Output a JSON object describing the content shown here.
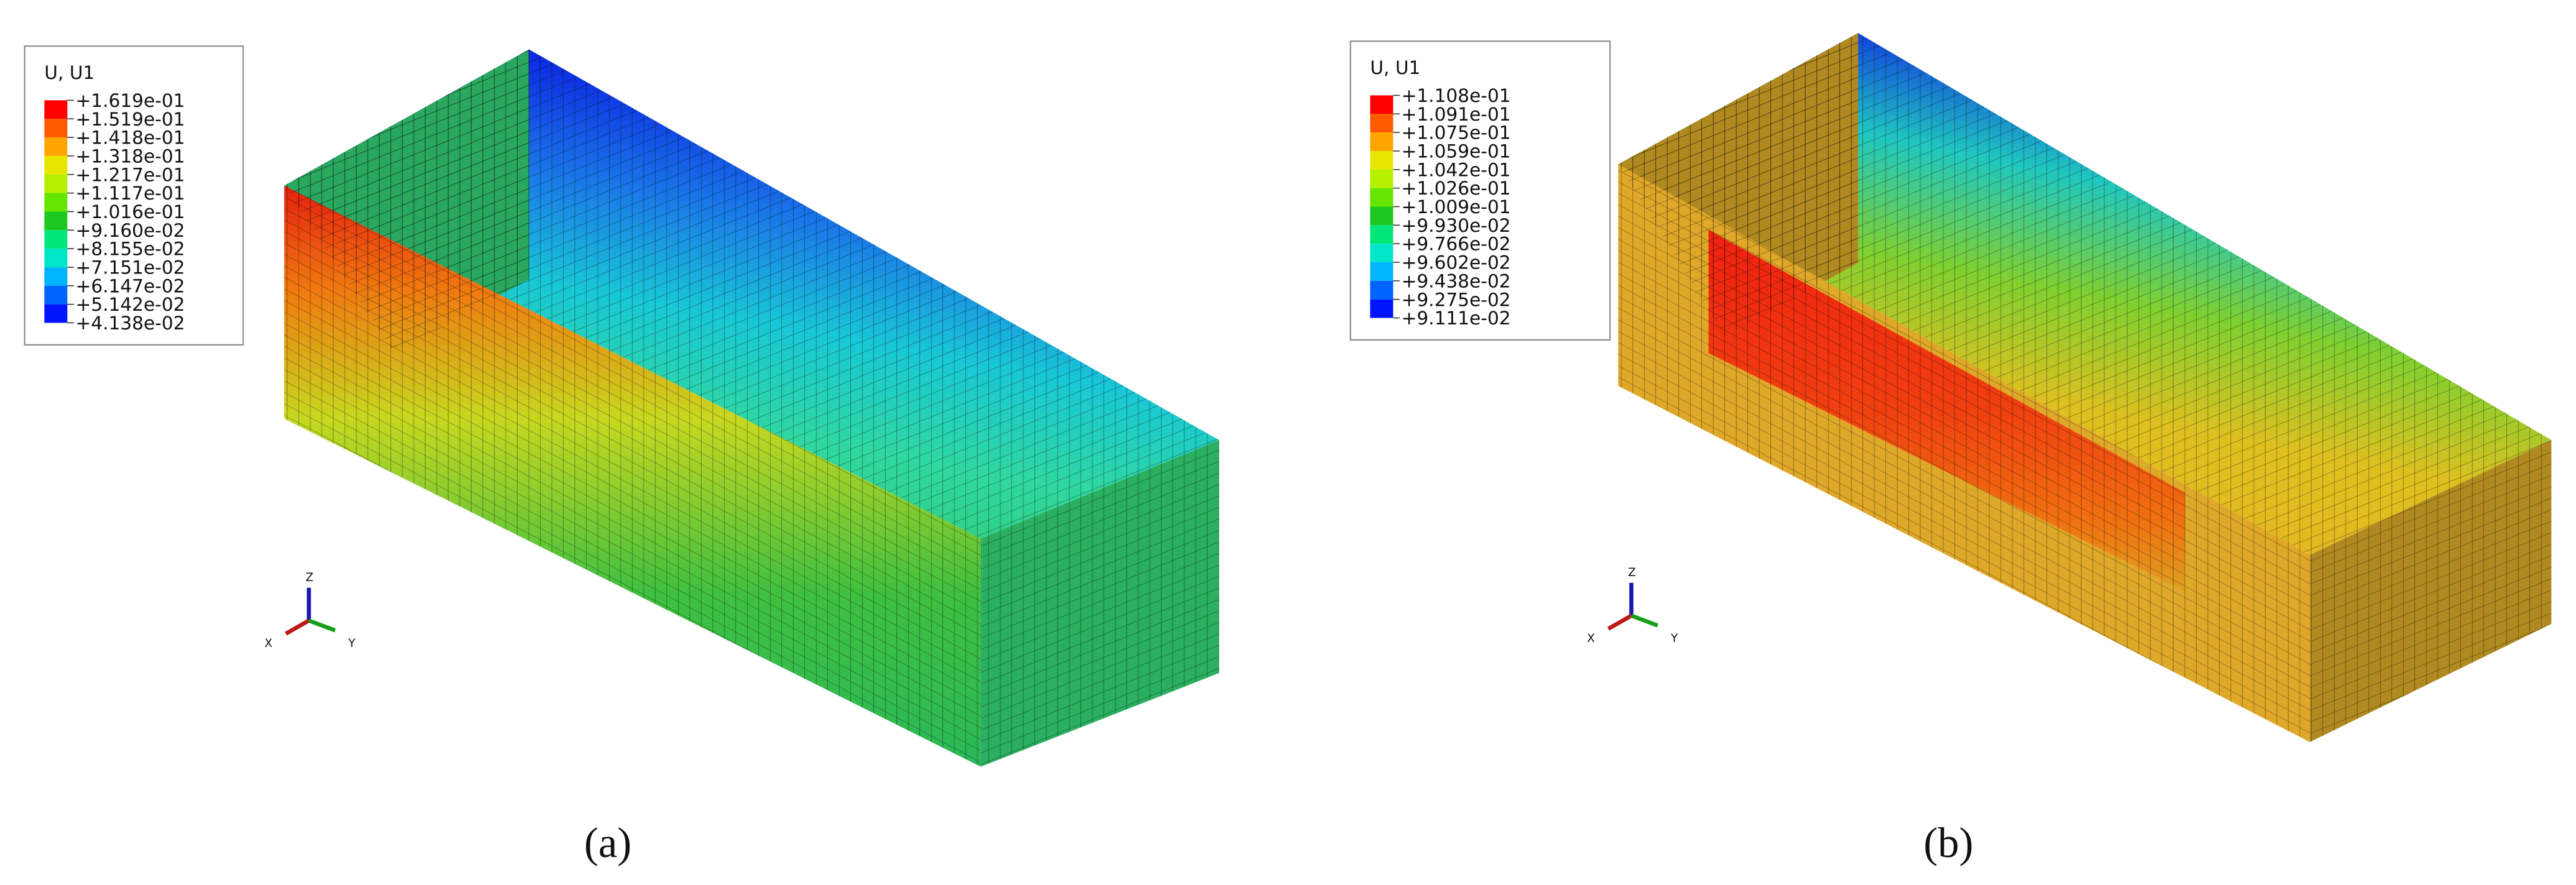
{
  "panels": [
    {
      "legend": {
        "title": "U, U1",
        "labels": [
          "+1.619e-01",
          "+1.519e-01",
          "+1.418e-01",
          "+1.318e-01",
          "+1.217e-01",
          "+1.117e-01",
          "+1.016e-01",
          "+9.160e-02",
          "+8.155e-02",
          "+7.151e-02",
          "+6.147e-02",
          "+5.142e-02",
          "+4.138e-02"
        ]
      },
      "triad": {
        "z": "Z",
        "x": "X",
        "y": "Y"
      },
      "caption": "(a)"
    },
    {
      "legend": {
        "title": "U, U1",
        "labels": [
          "+1.108e-01",
          "+1.091e-01",
          "+1.075e-01",
          "+1.059e-01",
          "+1.042e-01",
          "+1.026e-01",
          "+1.009e-01",
          "+9.930e-02",
          "+9.766e-02",
          "+9.602e-02",
          "+9.438e-02",
          "+9.275e-02",
          "+9.111e-02"
        ]
      },
      "triad": {
        "z": "Z",
        "x": "X",
        "y": "Y"
      },
      "caption": "(b)"
    }
  ]
}
